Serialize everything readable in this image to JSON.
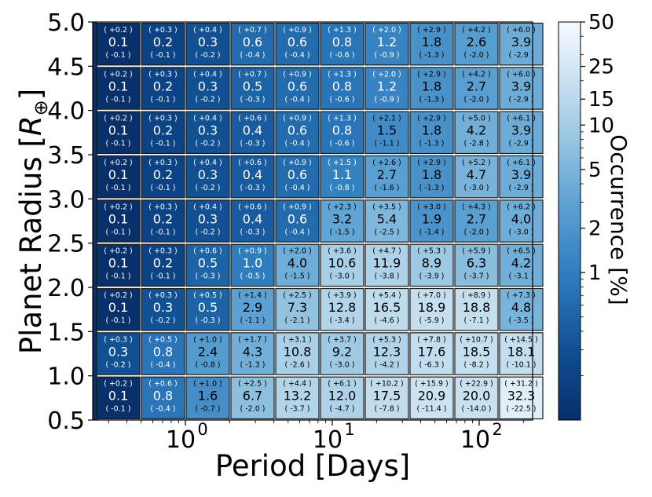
{
  "chart_data": {
    "type": "heatmap",
    "title": "",
    "xlabel": "Period [Days]",
    "ylabel": "Planet Radius [R⊕]",
    "x_scale": "log",
    "x_ticks": [
      {
        "label": "10",
        "exp": "0"
      },
      {
        "label": "10",
        "exp": "1"
      },
      {
        "label": "10",
        "exp": "2"
      }
    ],
    "y_ticks": [
      "0.5",
      "1.0",
      "1.5",
      "2.0",
      "2.5",
      "3.0",
      "3.5",
      "4.0",
      "4.5",
      "5.0"
    ],
    "ylim": [
      0.5,
      5.0
    ],
    "colorbar": {
      "label": "Occurrence [%]",
      "scale": "log",
      "ticks": [
        "1",
        "2",
        "5",
        "10",
        "15",
        "25",
        "50"
      ],
      "max": 50
    },
    "row_values": [
      5.0,
      4.5,
      4.0,
      3.5,
      3.0,
      2.5,
      2.0,
      1.5,
      1.0
    ],
    "cells": [
      [
        [
          "0.1",
          "+0.2",
          "-0.1"
        ],
        [
          "0.2",
          "+0.3",
          "-0.1"
        ],
        [
          "0.3",
          "+0.4",
          "-0.2"
        ],
        [
          "0.6",
          "+0.7",
          "-0.4"
        ],
        [
          "0.6",
          "+0.9",
          "-0.4"
        ],
        [
          "0.8",
          "+1.3",
          "-0.6"
        ],
        [
          "1.2",
          "+2.0",
          "-0.9"
        ],
        [
          "1.8",
          "+2.9",
          "-1.3"
        ],
        [
          "2.6",
          "+4.2",
          "-2.0"
        ],
        [
          "3.9",
          "+6.0",
          "-2.9"
        ]
      ],
      [
        [
          "0.1",
          "+0.2",
          "-0.1"
        ],
        [
          "0.2",
          "+0.3",
          "-0.1"
        ],
        [
          "0.3",
          "+0.4",
          "-0.2"
        ],
        [
          "0.5",
          "+0.7",
          "-0.3"
        ],
        [
          "0.6",
          "+0.9",
          "-0.4"
        ],
        [
          "0.8",
          "+1.3",
          "-0.6"
        ],
        [
          "1.2",
          "+2.0",
          "-0.9"
        ],
        [
          "1.8",
          "+2.9",
          "-1.3"
        ],
        [
          "2.7",
          "+4.2",
          "-2.0"
        ],
        [
          "3.9",
          "+6.0",
          "-2.9"
        ]
      ],
      [
        [
          "0.1",
          "+0.2",
          "-0.1"
        ],
        [
          "0.2",
          "+0.3",
          "-0.1"
        ],
        [
          "0.3",
          "+0.4",
          "-0.2"
        ],
        [
          "0.4",
          "+0.6",
          "-0.3"
        ],
        [
          "0.6",
          "+0.9",
          "-0.4"
        ],
        [
          "0.8",
          "+1.3",
          "-0.6"
        ],
        [
          "1.5",
          "+2.1",
          "-1.1"
        ],
        [
          "1.8",
          "+2.9",
          "-1.3"
        ],
        [
          "4.2",
          "+5.0",
          "-2.8"
        ],
        [
          "3.9",
          "+6.1",
          "-2.9"
        ]
      ],
      [
        [
          "0.1",
          "+0.2",
          "-0.1"
        ],
        [
          "0.2",
          "+0.3",
          "-0.1"
        ],
        [
          "0.3",
          "+0.4",
          "-0.2"
        ],
        [
          "0.4",
          "+0.6",
          "-0.3"
        ],
        [
          "0.6",
          "+0.9",
          "-0.4"
        ],
        [
          "1.1",
          "+1.5",
          "-0.8"
        ],
        [
          "2.7",
          "+2.6",
          "-1.6"
        ],
        [
          "1.8",
          "+2.9",
          "-1.3"
        ],
        [
          "4.7",
          "+5.2",
          "-3.0"
        ],
        [
          "3.9",
          "+6.1",
          "-2.9"
        ]
      ],
      [
        [
          "0.1",
          "+0.2",
          "-0.1"
        ],
        [
          "0.2",
          "+0.3",
          "-0.1"
        ],
        [
          "0.3",
          "+0.4",
          "-0.2"
        ],
        [
          "0.4",
          "+0.6",
          "-0.3"
        ],
        [
          "0.6",
          "+0.9",
          "-0.4"
        ],
        [
          "3.2",
          "+2.3",
          "-1.5"
        ],
        [
          "5.4",
          "+3.5",
          "-2.5"
        ],
        [
          "1.9",
          "+3.0",
          "-1.4"
        ],
        [
          "2.7",
          "+4.3",
          "-2.0"
        ],
        [
          "4.0",
          "+6.2",
          "-3.0"
        ]
      ],
      [
        [
          "0.1",
          "+0.2",
          "-0.1"
        ],
        [
          "0.2",
          "+0.3",
          "-0.1"
        ],
        [
          "0.5",
          "+0.6",
          "-0.3"
        ],
        [
          "1.0",
          "+0.9",
          "-0.5"
        ],
        [
          "4.0",
          "+2.0",
          "-1.5"
        ],
        [
          "10.6",
          "+3.6",
          "-3.0"
        ],
        [
          "11.9",
          "+4.7",
          "-3.8"
        ],
        [
          "8.9",
          "+5.3",
          "-3.9"
        ],
        [
          "6.3",
          "+5.9",
          "-3.7"
        ],
        [
          "4.2",
          "+6.5",
          "-3.1"
        ]
      ],
      [
        [
          "0.1",
          "+0.2",
          "-0.1"
        ],
        [
          "0.3",
          "+0.3",
          "-0.2"
        ],
        [
          "0.5",
          "+0.5",
          "-0.3"
        ],
        [
          "2.9",
          "+1.4",
          "-1.1"
        ],
        [
          "7.3",
          "+2.5",
          "-2.1"
        ],
        [
          "12.8",
          "+3.9",
          "-3.4"
        ],
        [
          "16.5",
          "+5.4",
          "-4.6"
        ],
        [
          "18.9",
          "+7.0",
          "-5.9"
        ],
        [
          "18.8",
          "+8.9",
          "-7.1"
        ],
        [
          "4.8",
          "+7.3",
          "-3.5"
        ]
      ],
      [
        [
          "0.3",
          "+0.3",
          "-0.2"
        ],
        [
          "0.8",
          "+0.5",
          "-0.4"
        ],
        [
          "2.4",
          "+1.0",
          "-0.8"
        ],
        [
          "4.3",
          "+1.7",
          "-1.3"
        ],
        [
          "10.8",
          "+3.1",
          "-2.6"
        ],
        [
          "9.2",
          "+3.7",
          "-3.0"
        ],
        [
          "12.3",
          "+5.3",
          "-4.2"
        ],
        [
          "17.6",
          "+7.8",
          "-6.3"
        ],
        [
          "18.5",
          "+10.7",
          "-8.2"
        ],
        [
          "18.1",
          "+14.5",
          "-10.1"
        ]
      ],
      [
        [
          "0.1",
          "+0.2",
          "-0.1"
        ],
        [
          "0.8",
          "+0.6",
          "-0.4"
        ],
        [
          "1.6",
          "+1.0",
          "-0.7"
        ],
        [
          "6.7",
          "+2.5",
          "-2.0"
        ],
        [
          "13.2",
          "+4.4",
          "-3.7"
        ],
        [
          "12.0",
          "+6.1",
          "-4.7"
        ],
        [
          "17.5",
          "+10.2",
          "-7.8"
        ],
        [
          "20.9",
          "+15.9",
          "-11.4"
        ],
        [
          "20.0",
          "+22.9",
          "-14.0"
        ],
        [
          "32.3",
          "+31.2",
          "-22.5"
        ]
      ]
    ]
  }
}
